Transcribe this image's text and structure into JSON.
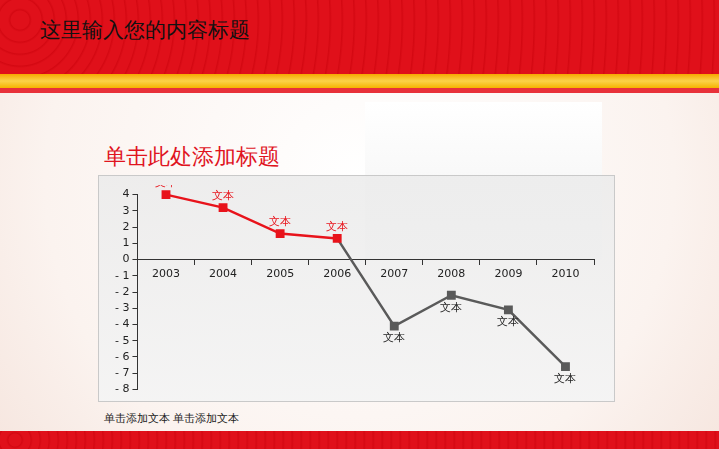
{
  "header": {
    "title": "这里输入您的内容标题"
  },
  "footer": {
    "text": "单击添加文本 单击添加文本"
  },
  "chart_data": {
    "type": "line",
    "title": "单击此处添加标题",
    "categories": [
      "2003",
      "2004",
      "2005",
      "2006",
      "2007",
      "2008",
      "2009",
      "2010"
    ],
    "values": [
      4,
      3.2,
      1.6,
      1.3,
      -4.1,
      -2.2,
      -3.1,
      -6.6
    ],
    "colors": [
      "#e8131b",
      "#e8131b",
      "#e8131b",
      "#e8131b",
      "#5a5a5a",
      "#5a5a5a",
      "#5a5a5a",
      "#5a5a5a"
    ],
    "annotations": [
      "文本",
      "文本",
      "文本",
      "文本",
      "文本",
      "文本",
      "文本",
      "文本"
    ],
    "marker": "square",
    "line_style": "solid",
    "ylim": [
      -8,
      4
    ],
    "yticks": [
      4,
      3,
      2,
      1,
      0,
      {
        "value": -1,
        "label": "- 1"
      },
      {
        "value": -2,
        "label": "- 2"
      },
      {
        "value": -3,
        "label": "- 3"
      },
      {
        "value": -4,
        "label": "- 4"
      },
      {
        "value": -5,
        "label": "- 5"
      },
      {
        "value": -6,
        "label": "- 6"
      },
      {
        "value": -7,
        "label": "- 7"
      },
      {
        "value": -8,
        "label": "- 8"
      }
    ],
    "grid": false
  }
}
